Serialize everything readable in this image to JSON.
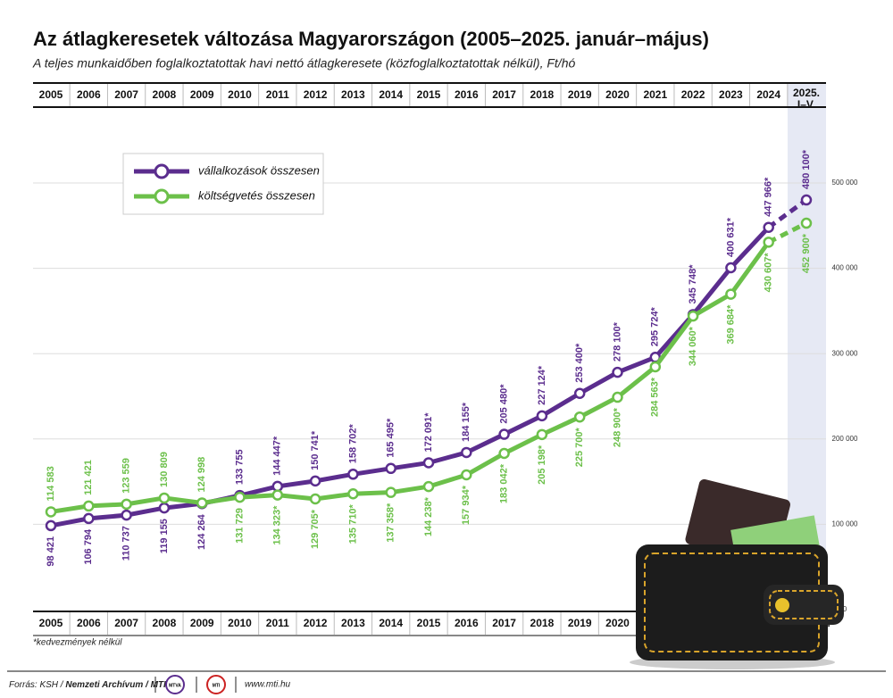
{
  "chart_data": {
    "type": "line",
    "title": "Az átlagkeresetek változása Magyarországon (2005–2025. január–május)",
    "subtitle": "A teljes munkaidőben foglalkoztatottak havi nettó átlagkeresete (közfoglalkoztatottak nélkül), Ft/hó",
    "categories": [
      "2005",
      "2006",
      "2007",
      "2008",
      "2009",
      "2010",
      "2011",
      "2012",
      "2013",
      "2014",
      "2015",
      "2016",
      "2017",
      "2018",
      "2019",
      "2020",
      "2021",
      "2022",
      "2023",
      "2024",
      "2025. I–V."
    ],
    "series": [
      {
        "name": "vállalkozások összesen",
        "color": "#5b2d8e",
        "values": [
          98421,
          106794,
          110737,
          119155,
          124264,
          133755,
          144447,
          150741,
          158702,
          165495,
          172091,
          184155,
          205480,
          227124,
          253400,
          278100,
          295724,
          345748,
          400631,
          447966,
          480100
        ],
        "value_labels": [
          "98 421",
          "106 794",
          "110 737",
          "119 155",
          "124 264",
          "133 755",
          "144 447*",
          "150 741*",
          "158 702*",
          "165 495*",
          "172 091*",
          "184 155*",
          "205 480*",
          "227 124*",
          "253 400*",
          "278 100*",
          "295 724*",
          "345 748*",
          "400 631*",
          "447 966*",
          "480 100*"
        ]
      },
      {
        "name": "költségvetés összesen",
        "color": "#6cc04a",
        "values": [
          114583,
          121421,
          123559,
          130809,
          124998,
          131729,
          134323,
          129705,
          135710,
          137358,
          144238,
          157934,
          183042,
          205198,
          225700,
          248900,
          284563,
          344060,
          369684,
          430607,
          452900
        ],
        "value_labels": [
          "114 583",
          "121 421",
          "123 559",
          "130 809",
          "124 998",
          "131 729",
          "134 323*",
          "129 705*",
          "135 710*",
          "137 358*",
          "144 238*",
          "157 934*",
          "183 042*",
          "205 198*",
          "225 700*",
          "248 900*",
          "284 563*",
          "344 060*",
          "369 684*",
          "430 607*",
          "452 900*"
        ]
      }
    ],
    "ylim": [
      0,
      500000
    ],
    "yticks": [
      0,
      {
        "value": 100000,
        "label": "100 000"
      },
      {
        "value": 200000,
        "label": "200 000"
      },
      {
        "value": 300000,
        "label": "300 000"
      },
      {
        "value": 400000,
        "label": "400 000"
      },
      {
        "value": 500000,
        "label": "500 000"
      }
    ],
    "grid": true,
    "legend": "upper left",
    "footnote": "*kedvezmények nélkül",
    "source": [
      "Forrás: KSH /",
      "Nemzeti Archívum / MTI"
    ],
    "logos": [
      "MTVA",
      "MTI"
    ],
    "url": "www.mti.hu"
  }
}
